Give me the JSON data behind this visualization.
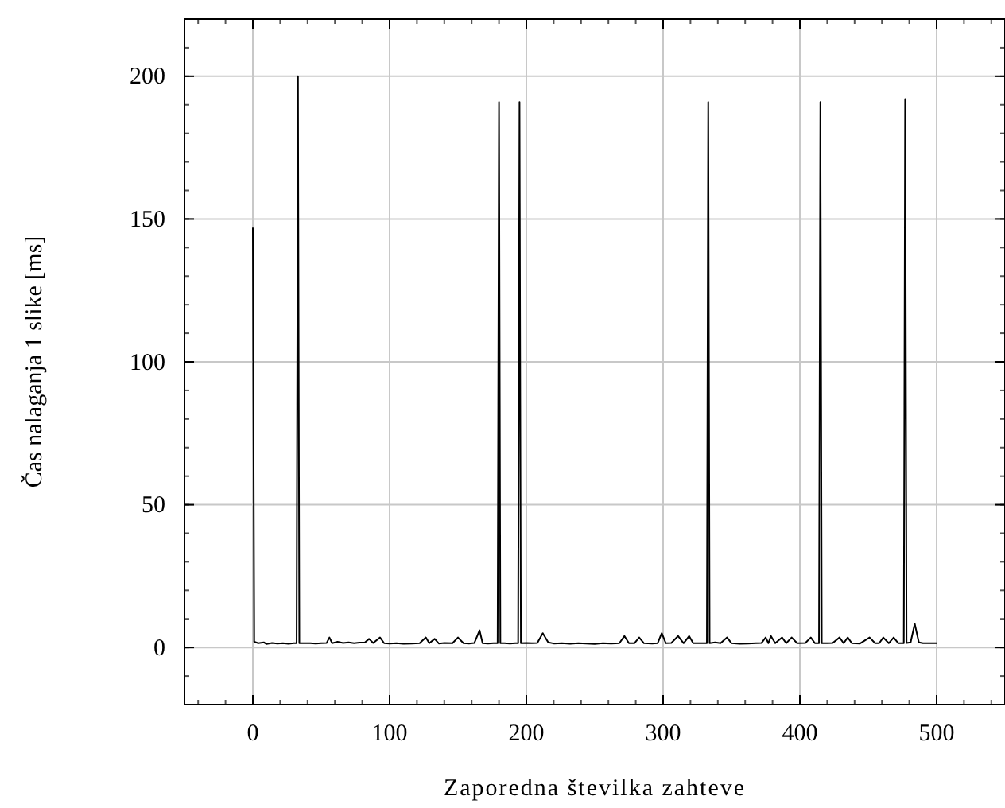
{
  "chart_data": {
    "type": "line",
    "xlabel": "Zaporedna številka zahteve",
    "ylabel": "Čas nalaganja 1 slike [ms]",
    "xlim": [
      -50,
      550
    ],
    "ylim": [
      -20,
      220
    ],
    "xticks": [
      0,
      100,
      200,
      300,
      400,
      500
    ],
    "yticks": [
      0,
      50,
      100,
      150,
      200
    ],
    "grid": true,
    "marker": "none",
    "line_style": "solid",
    "series": [
      {
        "color": "#000000",
        "x": [
          0,
          1,
          4,
          8,
          10,
          14,
          18,
          22,
          26,
          30,
          32,
          33,
          34,
          38,
          42,
          46,
          50,
          54,
          56,
          58,
          62,
          66,
          70,
          74,
          78,
          82,
          85,
          88,
          93,
          96,
          100,
          105,
          110,
          116,
          122,
          126.5,
          129,
          133,
          136,
          140,
          146,
          150,
          154,
          158,
          162,
          165.8,
          168,
          172,
          176,
          179,
          180,
          181,
          184,
          188,
          192,
          194,
          195,
          196,
          200,
          204,
          208,
          212,
          216,
          220,
          226,
          232,
          238,
          244,
          250,
          256,
          262,
          268,
          271.7,
          275,
          279,
          282.5,
          286,
          292,
          296,
          299,
          302,
          306,
          311,
          315,
          319,
          322,
          328,
          332,
          333,
          334,
          338,
          342,
          346.8,
          350,
          356,
          362,
          368,
          372,
          375,
          377,
          378.8,
          382,
          387,
          390,
          394,
          398,
          404,
          408,
          411,
          414,
          415,
          416,
          420,
          424,
          429,
          432,
          435,
          438,
          444,
          451,
          455,
          458,
          461,
          465,
          468.6,
          472,
          476,
          477,
          478,
          481,
          484,
          487,
          490,
          495,
          500
        ],
        "values": [
          147,
          2,
          1.5,
          1.8,
          1.2,
          1.6,
          1.4,
          1.5,
          1.3,
          1.5,
          1.5,
          200,
          1.5,
          1.5,
          1.5,
          1.4,
          1.5,
          1.6,
          3.5,
          1.5,
          2,
          1.6,
          1.8,
          1.5,
          1.7,
          1.8,
          3,
          1.6,
          3.5,
          1.5,
          1.4,
          1.5,
          1.3,
          1.4,
          1.5,
          3.5,
          1.5,
          3,
          1.4,
          1.6,
          1.5,
          3.5,
          1.5,
          1.4,
          1.6,
          6,
          1.5,
          1.4,
          1.5,
          1.5,
          191,
          1.5,
          1.5,
          1.4,
          1.5,
          1.5,
          191,
          1.5,
          1.6,
          1.5,
          1.6,
          5,
          1.8,
          1.4,
          1.5,
          1.3,
          1.5,
          1.4,
          1.2,
          1.5,
          1.4,
          1.5,
          4,
          1.5,
          1.5,
          3.5,
          1.5,
          1.4,
          1.5,
          5,
          1.5,
          1.6,
          4,
          1.5,
          4,
          1.5,
          1.5,
          1.5,
          191,
          1.5,
          1.8,
          1.5,
          3.5,
          1.5,
          1.3,
          1.4,
          1.5,
          1.6,
          3.5,
          1.5,
          4,
          1.5,
          3.5,
          1.5,
          3.5,
          1.5,
          1.6,
          3.5,
          1.5,
          1.5,
          191,
          1.5,
          1.5,
          1.6,
          3.5,
          1.5,
          3.5,
          1.5,
          1.4,
          3.5,
          1.5,
          1.5,
          3.5,
          1.5,
          3.5,
          1.5,
          1.5,
          192,
          1.6,
          1.8,
          8.3,
          1.8,
          1.5,
          1.5,
          1.5
        ]
      }
    ]
  }
}
